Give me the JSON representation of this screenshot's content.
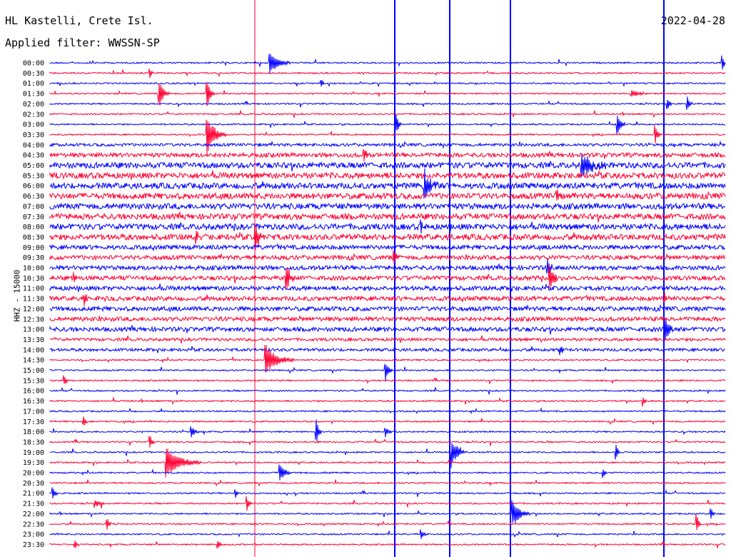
{
  "header": {
    "station": "HL Kastelli, Crete Isl.",
    "filter": "Applied filter: WWSSN-SP",
    "date": "2022-04-28"
  },
  "axis": {
    "channel_label": "HHZ - 15000"
  },
  "colors": {
    "even_trace": "#0000ff",
    "odd_trace": "#ff0033",
    "background": "#ffffff",
    "text": "#000000"
  },
  "chart_data": {
    "type": "line",
    "title": "HL Kastelli, Crete Isl.",
    "subtitle": "Applied filter: WWSSN-SP",
    "ylabel": "HHZ - 15000",
    "xlabel": "",
    "categories": [
      "00:00",
      "00:30",
      "01:00",
      "01:30",
      "02:00",
      "02:30",
      "03:00",
      "03:30",
      "04:00",
      "04:30",
      "05:00",
      "05:30",
      "06:00",
      "06:30",
      "07:00",
      "07:30",
      "08:00",
      "08:30",
      "09:00",
      "09:30",
      "10:00",
      "10:30",
      "11:00",
      "11:30",
      "12:00",
      "12:30",
      "13:00",
      "13:30",
      "14:00",
      "14:30",
      "15:00",
      "15:30",
      "16:00",
      "16:30",
      "17:00",
      "17:30",
      "18:00",
      "18:30",
      "19:00",
      "19:30",
      "20:00",
      "20:30",
      "21:00",
      "21:30",
      "22:00",
      "22:30",
      "23:00",
      "23:30"
    ],
    "noise": [
      1,
      1,
      1,
      1,
      1,
      1,
      1,
      1,
      2,
      3,
      4,
      4,
      4,
      4,
      4,
      4,
      4,
      4,
      3,
      3,
      3,
      3,
      3,
      3,
      3,
      3,
      3,
      2,
      2,
      1,
      1,
      1,
      1,
      1,
      1,
      1,
      1,
      1,
      1,
      1,
      1,
      1,
      1,
      1,
      1,
      1,
      1,
      1
    ],
    "events": [
      {
        "row": 0,
        "x": 378,
        "amp": 16,
        "dur": 28
      },
      {
        "row": 0,
        "x": 1012,
        "amp": 10,
        "dur": 6
      },
      {
        "row": 1,
        "x": 210,
        "amp": 8,
        "dur": 5
      },
      {
        "row": 2,
        "x": 450,
        "amp": 6,
        "dur": 5
      },
      {
        "row": 3,
        "x": 223,
        "amp": 20,
        "dur": 14
      },
      {
        "row": 3,
        "x": 290,
        "amp": 22,
        "dur": 10
      },
      {
        "row": 3,
        "x": 885,
        "amp": 5,
        "dur": 30
      },
      {
        "row": 4,
        "x": 935,
        "amp": 10,
        "dur": 6
      },
      {
        "row": 4,
        "x": 963,
        "amp": 12,
        "dur": 6
      },
      {
        "row": 6,
        "x": 555,
        "amp": 14,
        "dur": 8
      },
      {
        "row": 6,
        "x": 865,
        "amp": 16,
        "dur": 10
      },
      {
        "row": 7,
        "x": 290,
        "amp": 30,
        "dur": 26
      },
      {
        "row": 7,
        "x": 918,
        "amp": 14,
        "dur": 6
      },
      {
        "row": 9,
        "x": 510,
        "amp": 10,
        "dur": 6
      },
      {
        "row": 10,
        "x": 815,
        "amp": 18,
        "dur": 40
      },
      {
        "row": 12,
        "x": 595,
        "amp": 24,
        "dur": 18
      },
      {
        "row": 13,
        "x": 780,
        "amp": 10,
        "dur": 8
      },
      {
        "row": 16,
        "x": 590,
        "amp": 8,
        "dur": 6
      },
      {
        "row": 17,
        "x": 358,
        "amp": 20,
        "dur": 14
      },
      {
        "row": 17,
        "x": 275,
        "amp": 8,
        "dur": 5
      },
      {
        "row": 19,
        "x": 552,
        "amp": 12,
        "dur": 6
      },
      {
        "row": 20,
        "x": 767,
        "amp": 14,
        "dur": 8
      },
      {
        "row": 21,
        "x": 401,
        "amp": 20,
        "dur": 12
      },
      {
        "row": 21,
        "x": 770,
        "amp": 18,
        "dur": 14
      },
      {
        "row": 21,
        "x": 104,
        "amp": 10,
        "dur": 5
      },
      {
        "row": 23,
        "x": 118,
        "amp": 10,
        "dur": 5
      },
      {
        "row": 23,
        "x": 931,
        "amp": 8,
        "dur": 6
      },
      {
        "row": 26,
        "x": 932,
        "amp": 18,
        "dur": 12
      },
      {
        "row": 28,
        "x": 785,
        "amp": 8,
        "dur": 6
      },
      {
        "row": 29,
        "x": 372,
        "amp": 22,
        "dur": 40
      },
      {
        "row": 30,
        "x": 540,
        "amp": 14,
        "dur": 10
      },
      {
        "row": 31,
        "x": 90,
        "amp": 8,
        "dur": 5
      },
      {
        "row": 33,
        "x": 901,
        "amp": 8,
        "dur": 5
      },
      {
        "row": 35,
        "x": 117,
        "amp": 8,
        "dur": 5
      },
      {
        "row": 36,
        "x": 443,
        "amp": 18,
        "dur": 8
      },
      {
        "row": 36,
        "x": 268,
        "amp": 8,
        "dur": 10
      },
      {
        "row": 36,
        "x": 540,
        "amp": 8,
        "dur": 8
      },
      {
        "row": 37,
        "x": 210,
        "amp": 10,
        "dur": 6
      },
      {
        "row": 38,
        "x": 633,
        "amp": 22,
        "dur": 20
      },
      {
        "row": 38,
        "x": 863,
        "amp": 12,
        "dur": 5
      },
      {
        "row": 39,
        "x": 233,
        "amp": 22,
        "dur": 50
      },
      {
        "row": 40,
        "x": 392,
        "amp": 14,
        "dur": 16
      },
      {
        "row": 40,
        "x": 845,
        "amp": 8,
        "dur": 5
      },
      {
        "row": 42,
        "x": 74,
        "amp": 10,
        "dur": 6
      },
      {
        "row": 42,
        "x": 330,
        "amp": 6,
        "dur": 5
      },
      {
        "row": 43,
        "x": 133,
        "amp": 6,
        "dur": 16
      },
      {
        "row": 43,
        "x": 346,
        "amp": 10,
        "dur": 6
      },
      {
        "row": 44,
        "x": 718,
        "amp": 20,
        "dur": 24
      },
      {
        "row": 44,
        "x": 996,
        "amp": 8,
        "dur": 5
      },
      {
        "row": 45,
        "x": 150,
        "amp": 10,
        "dur": 5
      },
      {
        "row": 45,
        "x": 976,
        "amp": 14,
        "dur": 5
      },
      {
        "row": 46,
        "x": 590,
        "amp": 8,
        "dur": 6
      },
      {
        "row": 47,
        "x": 105,
        "amp": 8,
        "dur": 5
      },
      {
        "row": 47,
        "x": 305,
        "amp": 8,
        "dur": 5
      }
    ],
    "vertical_lines": [
      {
        "x": 357,
        "color": "red"
      },
      {
        "x": 553,
        "color": "blue"
      },
      {
        "x": 630,
        "color": "blue"
      },
      {
        "x": 715,
        "color": "blue"
      },
      {
        "x": 930,
        "color": "blue"
      }
    ]
  }
}
